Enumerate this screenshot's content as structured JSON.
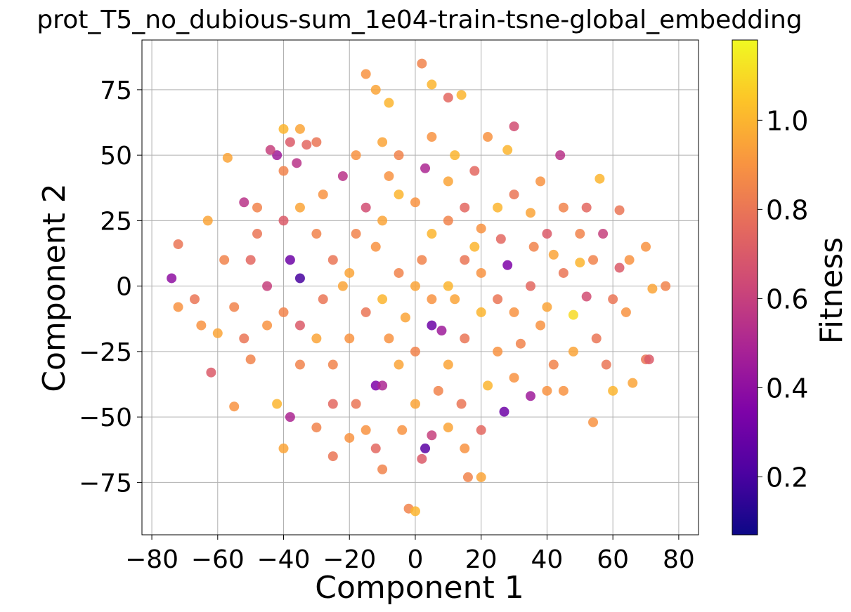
{
  "chart_data": {
    "type": "scatter",
    "title": "prot_T5_no_dubious-sum_1e04-train-tsne-global_embedding",
    "xlabel": "Component 1",
    "ylabel": "Component 2",
    "xlim": [
      -83,
      86
    ],
    "ylim": [
      -95,
      94
    ],
    "xticks": [
      -80,
      -60,
      -40,
      -20,
      0,
      20,
      40,
      60,
      80
    ],
    "yticks": [
      -75,
      -50,
      -25,
      0,
      25,
      50,
      75
    ],
    "xtick_labels": [
      "−80",
      "−60",
      "−40",
      "−20",
      "0",
      "20",
      "40",
      "60",
      "80"
    ],
    "ytick_labels": [
      "−75",
      "−50",
      "−25",
      "0",
      "25",
      "50",
      "75"
    ],
    "grid": true,
    "colormap": "plasma",
    "colorbar": {
      "label": "Fitness",
      "range": [
        0.07,
        1.18
      ],
      "ticks": [
        0.2,
        0.4,
        0.6,
        0.8,
        1.0
      ],
      "tick_labels": [
        "0.2",
        "0.4",
        "0.6",
        "0.8",
        "1.0"
      ]
    },
    "points": [
      {
        "x": 2,
        "y": 85,
        "c": 0.85
      },
      {
        "x": 5,
        "y": 77,
        "c": 1.0
      },
      {
        "x": -15,
        "y": 81,
        "c": 0.9
      },
      {
        "x": -12,
        "y": 75,
        "c": 0.95
      },
      {
        "x": -8,
        "y": 70,
        "c": 1.0
      },
      {
        "x": 14,
        "y": 73,
        "c": 1.0
      },
      {
        "x": 10,
        "y": 72,
        "c": 0.75
      },
      {
        "x": -40,
        "y": 60,
        "c": 1.0
      },
      {
        "x": -38,
        "y": 55,
        "c": 0.7
      },
      {
        "x": -42,
        "y": 50,
        "c": 0.45
      },
      {
        "x": -36,
        "y": 47,
        "c": 0.55
      },
      {
        "x": -40,
        "y": 44,
        "c": 0.85
      },
      {
        "x": -44,
        "y": 52,
        "c": 0.6
      },
      {
        "x": -33,
        "y": 54,
        "c": 0.75
      },
      {
        "x": -57,
        "y": 49,
        "c": 0.95
      },
      {
        "x": -52,
        "y": 32,
        "c": 0.55
      },
      {
        "x": -48,
        "y": 30,
        "c": 0.85
      },
      {
        "x": -63,
        "y": 25,
        "c": 0.95
      },
      {
        "x": -72,
        "y": 16,
        "c": 0.8
      },
      {
        "x": -74,
        "y": 3,
        "c": 0.4
      },
      {
        "x": -72,
        "y": -8,
        "c": 0.9
      },
      {
        "x": -67,
        "y": -5,
        "c": 0.8
      },
      {
        "x": -60,
        "y": -18,
        "c": 0.95
      },
      {
        "x": -55,
        "y": -8,
        "c": 0.85
      },
      {
        "x": -62,
        "y": -33,
        "c": 0.7
      },
      {
        "x": -55,
        "y": -46,
        "c": 0.9
      },
      {
        "x": -50,
        "y": -28,
        "c": 0.85
      },
      {
        "x": -42,
        "y": -45,
        "c": 1.0
      },
      {
        "x": -38,
        "y": -50,
        "c": 0.5
      },
      {
        "x": -40,
        "y": -62,
        "c": 0.95
      },
      {
        "x": -35,
        "y": 3,
        "c": 0.2
      },
      {
        "x": -38,
        "y": 10,
        "c": 0.3
      },
      {
        "x": -30,
        "y": 20,
        "c": 0.85
      },
      {
        "x": -25,
        "y": 10,
        "c": 0.8
      },
      {
        "x": -20,
        "y": 5,
        "c": 0.95
      },
      {
        "x": -15,
        "y": 30,
        "c": 0.65
      },
      {
        "x": -10,
        "y": 25,
        "c": 0.95
      },
      {
        "x": -5,
        "y": 35,
        "c": 1.0
      },
      {
        "x": 0,
        "y": 32,
        "c": 0.9
      },
      {
        "x": 5,
        "y": 20,
        "c": 1.0
      },
      {
        "x": 10,
        "y": 25,
        "c": 0.85
      },
      {
        "x": 15,
        "y": 30,
        "c": 0.75
      },
      {
        "x": 20,
        "y": 22,
        "c": 0.9
      },
      {
        "x": 25,
        "y": 30,
        "c": 1.0
      },
      {
        "x": 30,
        "y": 35,
        "c": 0.8
      },
      {
        "x": 35,
        "y": 28,
        "c": 0.95
      },
      {
        "x": 40,
        "y": 20,
        "c": 0.7
      },
      {
        "x": 45,
        "y": 30,
        "c": 0.85
      },
      {
        "x": 22,
        "y": 57,
        "c": 0.9
      },
      {
        "x": 30,
        "y": 61,
        "c": 0.65
      },
      {
        "x": 28,
        "y": 52,
        "c": 1.0
      },
      {
        "x": 44,
        "y": 50,
        "c": 0.55
      },
      {
        "x": 38,
        "y": 40,
        "c": 0.9
      },
      {
        "x": 56,
        "y": 41,
        "c": 1.0
      },
      {
        "x": 52,
        "y": 30,
        "c": 0.75
      },
      {
        "x": 62,
        "y": 29,
        "c": 0.8
      },
      {
        "x": 57,
        "y": 20,
        "c": 0.6
      },
      {
        "x": 50,
        "y": 9,
        "c": 1.0
      },
      {
        "x": 54,
        "y": 10,
        "c": 0.85
      },
      {
        "x": 62,
        "y": 7,
        "c": 0.7
      },
      {
        "x": 70,
        "y": 15,
        "c": 0.9
      },
      {
        "x": 76,
        "y": 0,
        "c": 0.85
      },
      {
        "x": 72,
        "y": -1,
        "c": 0.95
      },
      {
        "x": 64,
        "y": -10,
        "c": 0.9
      },
      {
        "x": 55,
        "y": -20,
        "c": 0.8
      },
      {
        "x": 48,
        "y": -11,
        "c": 1.1
      },
      {
        "x": 52,
        "y": -4,
        "c": 0.65
      },
      {
        "x": 70,
        "y": -28,
        "c": 0.8
      },
      {
        "x": 66,
        "y": -37,
        "c": 0.95
      },
      {
        "x": 71,
        "y": -28,
        "c": 0.7
      },
      {
        "x": 60,
        "y": -40,
        "c": 1.0
      },
      {
        "x": 54,
        "y": -52,
        "c": 0.9
      },
      {
        "x": 42,
        "y": -30,
        "c": 0.85
      },
      {
        "x": 35,
        "y": -42,
        "c": 0.45
      },
      {
        "x": 40,
        "y": -40,
        "c": 0.9
      },
      {
        "x": 30,
        "y": -35,
        "c": 0.9
      },
      {
        "x": 27,
        "y": -48,
        "c": 0.3
      },
      {
        "x": 22,
        "y": -38,
        "c": 1.0
      },
      {
        "x": 20,
        "y": -55,
        "c": 0.75
      },
      {
        "x": 20,
        "y": -73,
        "c": 0.95
      },
      {
        "x": 16,
        "y": -73,
        "c": 0.85
      },
      {
        "x": 15,
        "y": -62,
        "c": 0.9
      },
      {
        "x": 10,
        "y": -54,
        "c": 0.95
      },
      {
        "x": 5,
        "y": -57,
        "c": 0.6
      },
      {
        "x": 2,
        "y": -66,
        "c": 0.7
      },
      {
        "x": 3,
        "y": -62,
        "c": 0.25
      },
      {
        "x": -2,
        "y": -85,
        "c": 0.85
      },
      {
        "x": 0,
        "y": -86,
        "c": 1.0
      },
      {
        "x": -10,
        "y": -70,
        "c": 0.85
      },
      {
        "x": -12,
        "y": -62,
        "c": 0.75
      },
      {
        "x": -15,
        "y": -55,
        "c": 0.9
      },
      {
        "x": -18,
        "y": -45,
        "c": 0.8
      },
      {
        "x": -20,
        "y": -58,
        "c": 0.9
      },
      {
        "x": -25,
        "y": -65,
        "c": 0.8
      },
      {
        "x": -30,
        "y": -54,
        "c": 0.85
      },
      {
        "x": -12,
        "y": -38,
        "c": 0.35
      },
      {
        "x": -10,
        "y": -38,
        "c": 0.5
      },
      {
        "x": -5,
        "y": -30,
        "c": 0.95
      },
      {
        "x": 0,
        "y": -25,
        "c": 0.85
      },
      {
        "x": 5,
        "y": -15,
        "c": 0.3
      },
      {
        "x": 8,
        "y": -17,
        "c": 0.45
      },
      {
        "x": 10,
        "y": -30,
        "c": 0.95
      },
      {
        "x": 15,
        "y": -20,
        "c": 0.8
      },
      {
        "x": 20,
        "y": -10,
        "c": 1.0
      },
      {
        "x": 25,
        "y": -5,
        "c": 0.8
      },
      {
        "x": 28,
        "y": 8,
        "c": 0.35
      },
      {
        "x": 30,
        "y": -10,
        "c": 0.9
      },
      {
        "x": 35,
        "y": 0,
        "c": 0.75
      },
      {
        "x": 40,
        "y": -8,
        "c": 0.95
      },
      {
        "x": 45,
        "y": 5,
        "c": 0.8
      },
      {
        "x": 0,
        "y": 0,
        "c": 0.95
      },
      {
        "x": -5,
        "y": 5,
        "c": 0.85
      },
      {
        "x": -10,
        "y": -5,
        "c": 1.0
      },
      {
        "x": -15,
        "y": -10,
        "c": 0.8
      },
      {
        "x": -20,
        "y": -20,
        "c": 0.9
      },
      {
        "x": -25,
        "y": -30,
        "c": 0.85
      },
      {
        "x": -30,
        "y": -20,
        "c": 0.95
      },
      {
        "x": -35,
        "y": -15,
        "c": 0.7
      },
      {
        "x": -40,
        "y": -10,
        "c": 0.85
      },
      {
        "x": -45,
        "y": -15,
        "c": 0.9
      },
      {
        "x": -45,
        "y": 0,
        "c": 0.6
      },
      {
        "x": -50,
        "y": 10,
        "c": 0.75
      },
      {
        "x": -48,
        "y": 20,
        "c": 0.8
      },
      {
        "x": -40,
        "y": 25,
        "c": 0.7
      },
      {
        "x": -35,
        "y": 30,
        "c": 0.95
      },
      {
        "x": -28,
        "y": 35,
        "c": 0.9
      },
      {
        "x": -22,
        "y": 42,
        "c": 0.55
      },
      {
        "x": -18,
        "y": 50,
        "c": 0.9
      },
      {
        "x": -10,
        "y": 55,
        "c": 0.95
      },
      {
        "x": -5,
        "y": 50,
        "c": 0.85
      },
      {
        "x": 5,
        "y": 57,
        "c": 0.9
      },
      {
        "x": 12,
        "y": 50,
        "c": 1.0
      },
      {
        "x": 18,
        "y": 44,
        "c": 0.75
      },
      {
        "x": 10,
        "y": 40,
        "c": 0.95
      },
      {
        "x": 3,
        "y": 45,
        "c": 0.5
      },
      {
        "x": -8,
        "y": 42,
        "c": 0.9
      },
      {
        "x": -30,
        "y": 55,
        "c": 0.8
      },
      {
        "x": -35,
        "y": 60,
        "c": 0.95
      },
      {
        "x": 20,
        "y": 5,
        "c": 0.9
      },
      {
        "x": 15,
        "y": 10,
        "c": 0.8
      },
      {
        "x": 10,
        "y": 0,
        "c": 1.0
      },
      {
        "x": 5,
        "y": -5,
        "c": 0.9
      },
      {
        "x": -3,
        "y": -12,
        "c": 0.95
      },
      {
        "x": 2,
        "y": 10,
        "c": 0.85
      },
      {
        "x": 12,
        "y": -5,
        "c": 0.95
      },
      {
        "x": 18,
        "y": 15,
        "c": 1.0
      },
      {
        "x": -12,
        "y": 15,
        "c": 0.9
      },
      {
        "x": -18,
        "y": 20,
        "c": 0.85
      },
      {
        "x": -22,
        "y": 0,
        "c": 0.95
      },
      {
        "x": -28,
        "y": -5,
        "c": 0.8
      },
      {
        "x": 25,
        "y": -25,
        "c": 0.9
      },
      {
        "x": 32,
        "y": -22,
        "c": 0.85
      },
      {
        "x": 38,
        "y": -15,
        "c": 0.9
      },
      {
        "x": 42,
        "y": 12,
        "c": 0.95
      },
      {
        "x": 36,
        "y": 15,
        "c": 0.85
      },
      {
        "x": 26,
        "y": 18,
        "c": 0.75
      },
      {
        "x": -8,
        "y": -20,
        "c": 0.9
      },
      {
        "x": 7,
        "y": -40,
        "c": 0.85
      },
      {
        "x": 0,
        "y": -45,
        "c": 0.95
      },
      {
        "x": 14,
        "y": -45,
        "c": 0.8
      },
      {
        "x": -4,
        "y": -55,
        "c": 0.9
      },
      {
        "x": -35,
        "y": -30,
        "c": 0.85
      },
      {
        "x": -25,
        "y": -45,
        "c": 0.75
      },
      {
        "x": -58,
        "y": 10,
        "c": 0.85
      },
      {
        "x": -65,
        "y": -15,
        "c": 0.9
      },
      {
        "x": -52,
        "y": -20,
        "c": 0.8
      },
      {
        "x": 60,
        "y": -5,
        "c": 0.8
      },
      {
        "x": 65,
        "y": 10,
        "c": 0.9
      },
      {
        "x": 50,
        "y": 20,
        "c": 0.85
      },
      {
        "x": 48,
        "y": -25,
        "c": 0.95
      },
      {
        "x": 58,
        "y": -30,
        "c": 0.8
      },
      {
        "x": 45,
        "y": -40,
        "c": 0.9
      }
    ]
  }
}
